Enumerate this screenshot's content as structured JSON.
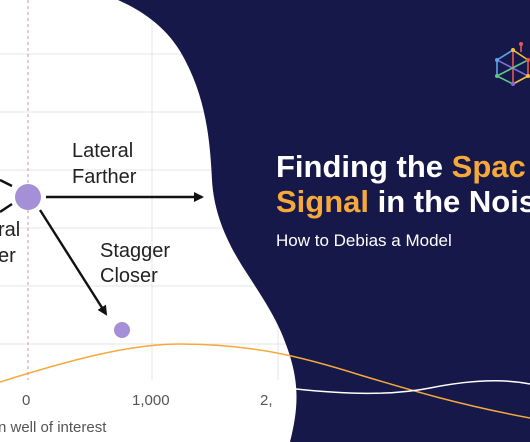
{
  "colors": {
    "navy": "#16184a",
    "orange": "#f6a93b",
    "purple": "#a58fd6",
    "grid": "#e4e4e4",
    "white": "#ffffff"
  },
  "chart": {
    "arrow_labels": {
      "lateral_farther_line1": "Lateral",
      "lateral_farther_line2": "Farther",
      "stagger_closer_line1": "Stagger",
      "stagger_closer_line2": "Closer",
      "partial_line1": "ral",
      "partial_line2": "er"
    },
    "x_ticks": [
      "0",
      "1,000",
      "2,"
    ],
    "x_axis_label": "n well of interest"
  },
  "headline": {
    "line1_part1": "Finding the ",
    "line1_highlight": "Spac",
    "line2_highlight": "Signal",
    "line2_part2": " in the Nois",
    "subtitle": "How to Debias a Model"
  },
  "logo": {
    "icon": "network-cube-logo-icon"
  }
}
